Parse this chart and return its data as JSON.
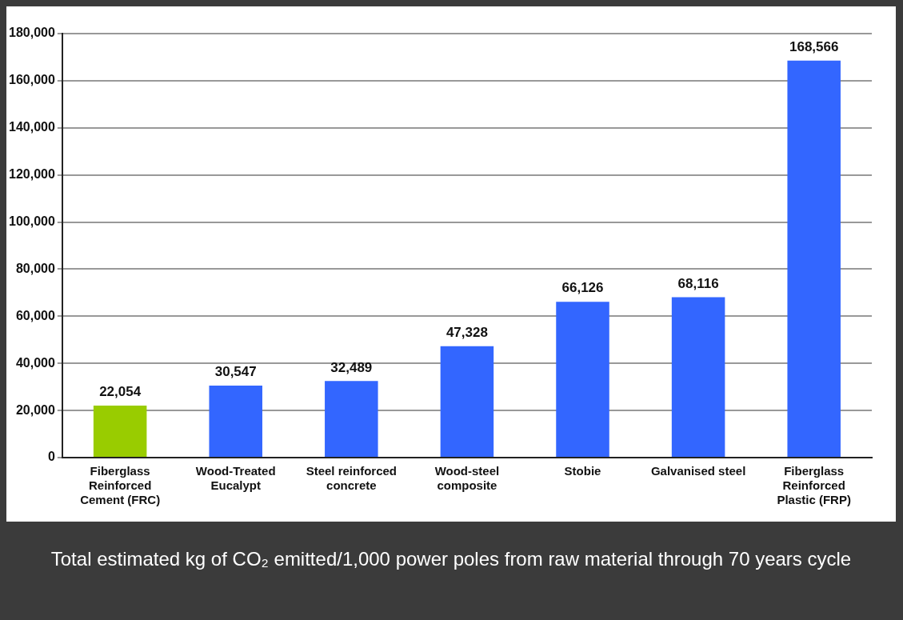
{
  "chart_data": {
    "type": "bar",
    "categories": [
      "Fiberglass Reinforced Cement (FRC)",
      "Wood-Treated Eucalypt",
      "Steel reinforced concrete",
      "Wood-steel composite",
      "Stobie",
      "Galvanised steel",
      "Fiberglass Reinforced Plastic (FRP)"
    ],
    "values": [
      22054,
      30547,
      32489,
      47328,
      66126,
      68116,
      168566
    ],
    "value_labels": [
      "22,054",
      "30,547",
      "32,489",
      "47,328",
      "66,126",
      "68,116",
      "168,566"
    ],
    "colors": [
      "#99cc00",
      "#3366ff",
      "#3366ff",
      "#3366ff",
      "#3366ff",
      "#3366ff",
      "#3366ff"
    ],
    "ylim": [
      0,
      180000
    ],
    "yticks": [
      {
        "value": 0,
        "label": "0"
      },
      {
        "value": 20000,
        "label": "20,000"
      },
      {
        "value": 40000,
        "label": "40,000"
      },
      {
        "value": 60000,
        "label": "60,000"
      },
      {
        "value": 80000,
        "label": "80,000"
      },
      {
        "value": 100000,
        "label": "100,000"
      },
      {
        "value": 120000,
        "label": "120,000"
      },
      {
        "value": 140000,
        "label": "140,000"
      },
      {
        "value": 160000,
        "label": "160,000"
      },
      {
        "value": 180000,
        "label": "180,000"
      }
    ],
    "grid": "y",
    "legend": false,
    "annotations": [
      "Total estimated kg of CO₂ emitted/1,000 power poles from raw material through 70 years cycle"
    ]
  }
}
